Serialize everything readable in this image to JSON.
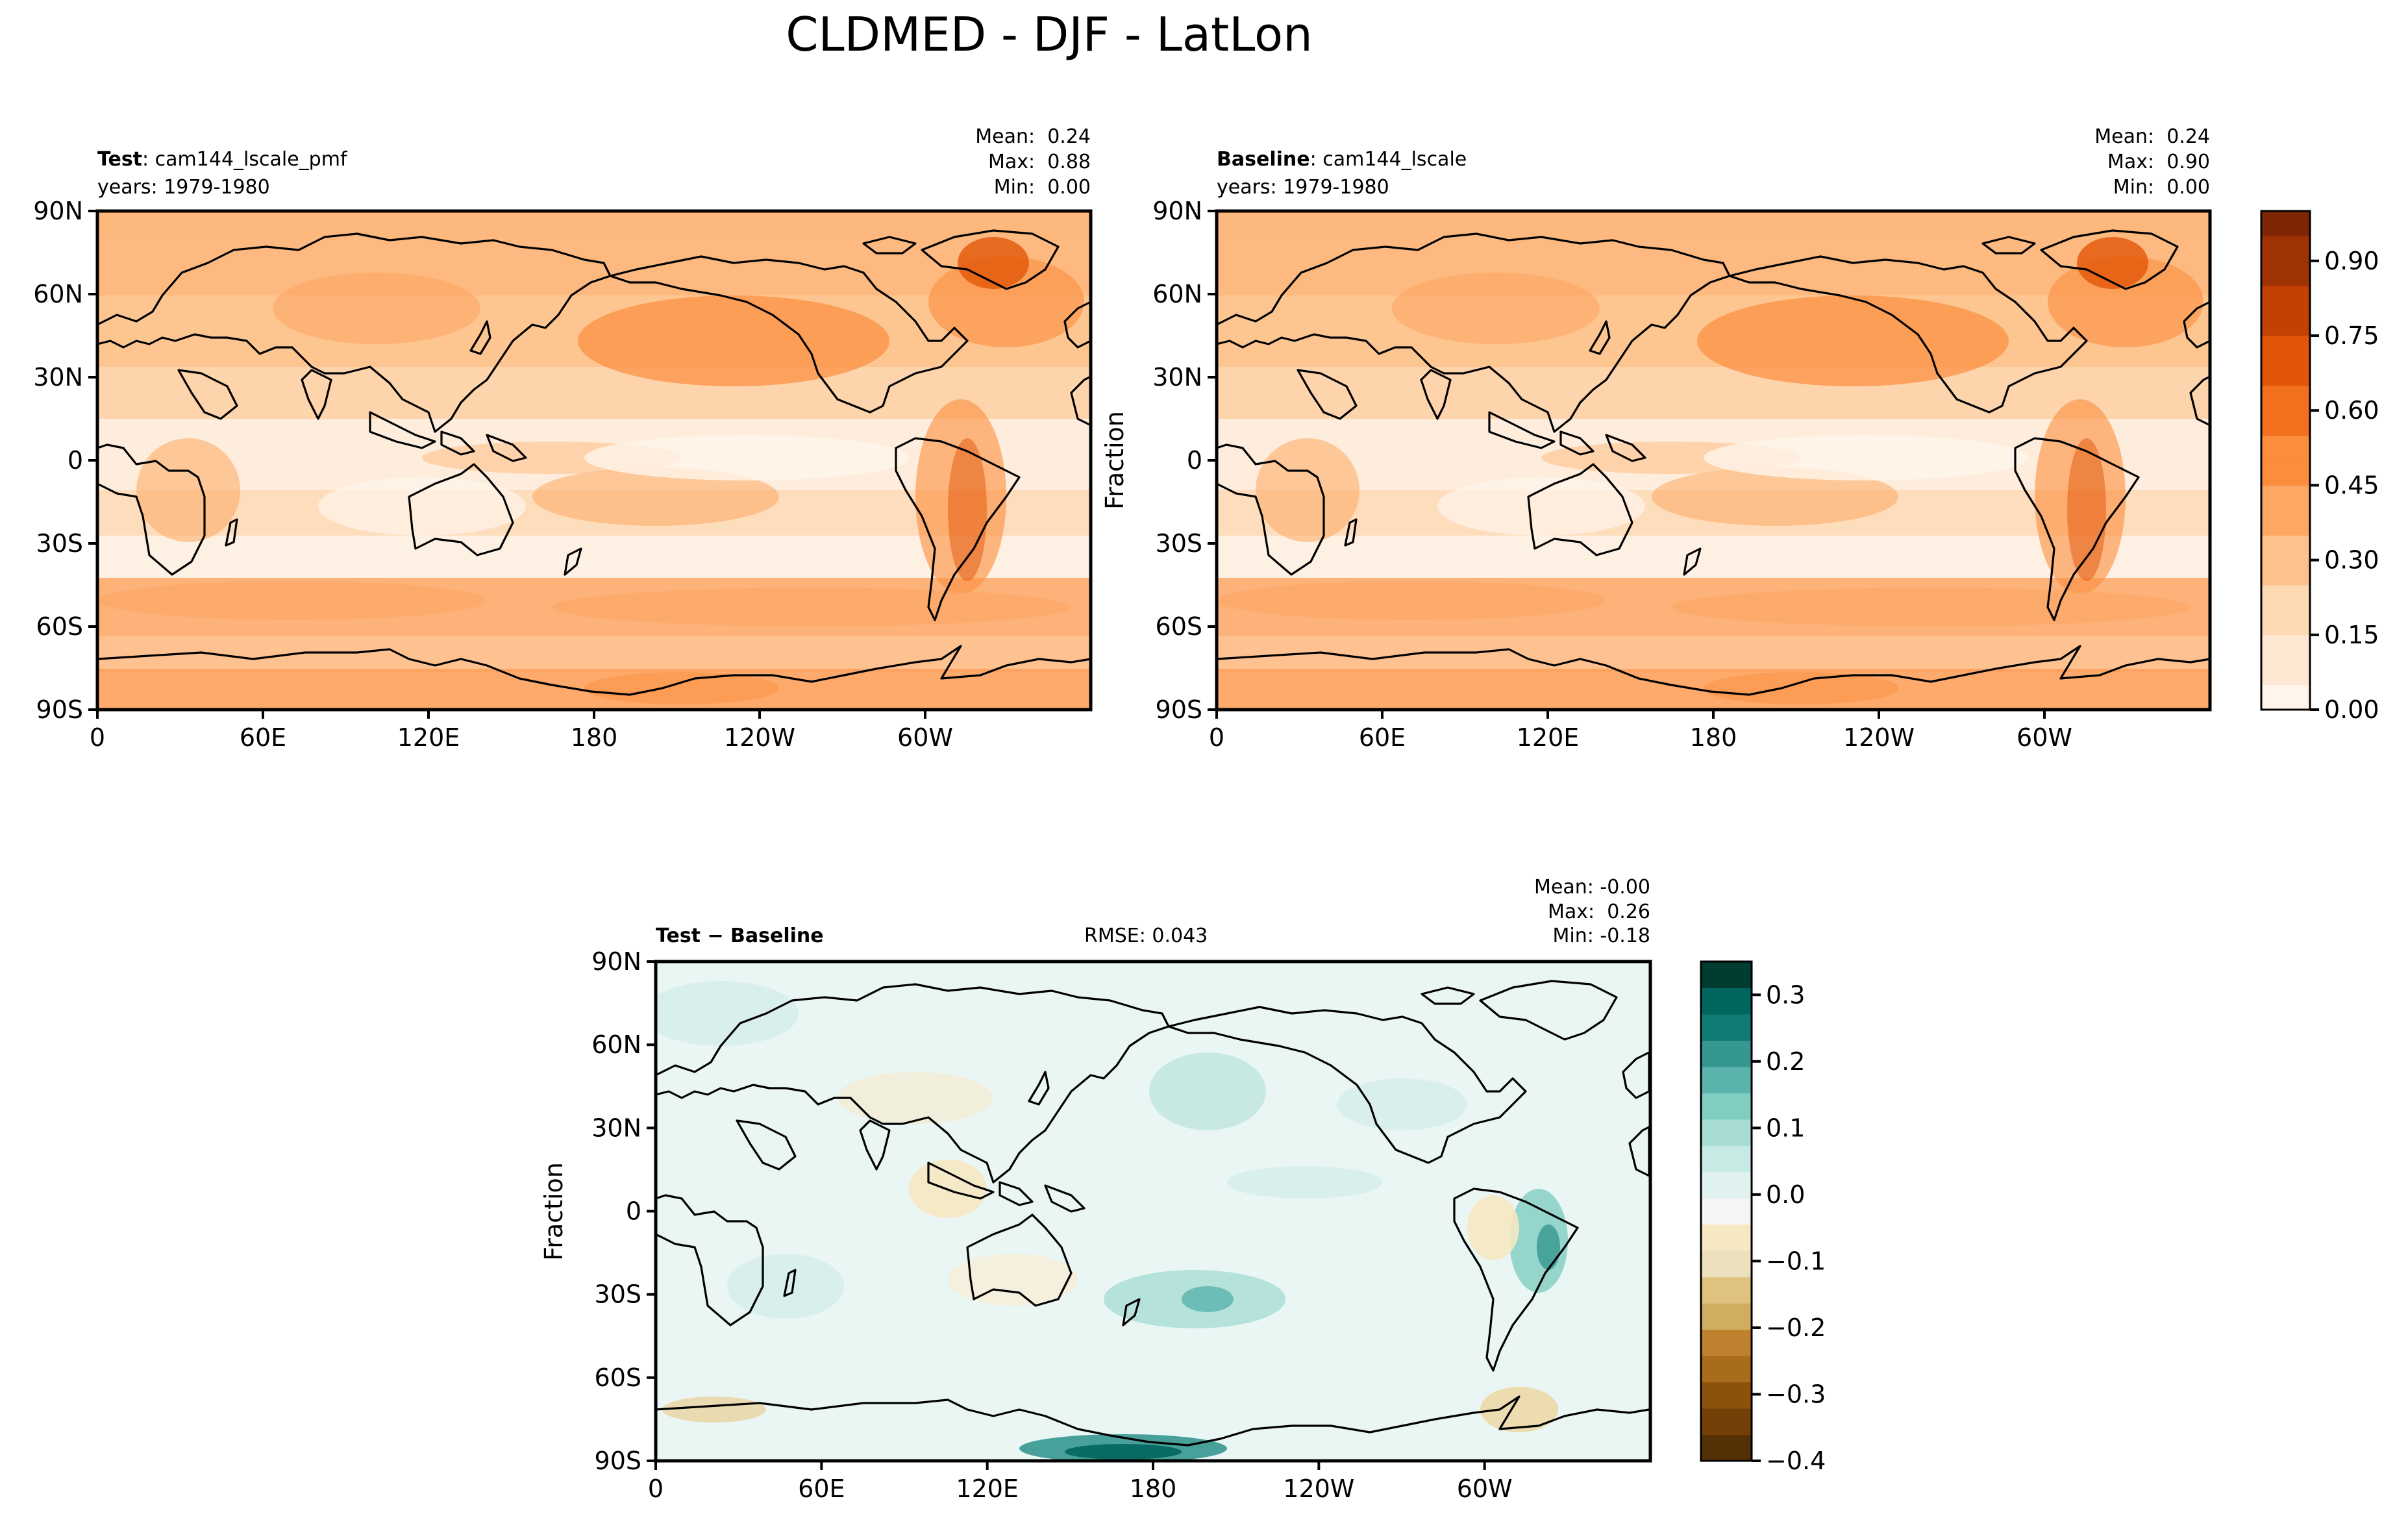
{
  "figure": {
    "title": "CLDMED - DJF - LatLon"
  },
  "chart_data": [
    {
      "type": "heatmap",
      "panel": "test",
      "label_bold": "Test",
      "label_rest": ": cam144_lscale_pmf",
      "subtitle": "years: 1979-1980",
      "stats": [
        "Mean:  0.24",
        "Max:  0.88",
        "Min:  0.00"
      ],
      "ylabel": "",
      "xticks": [
        "0",
        "60E",
        "120E",
        "180",
        "120W",
        "60W"
      ],
      "yticks": [
        "90N",
        "60N",
        "30N",
        "0",
        "30S",
        "60S",
        "90S"
      ],
      "xlim": [
        0,
        360
      ],
      "ylim": [
        -90,
        90
      ]
    },
    {
      "type": "heatmap",
      "panel": "baseline",
      "label_bold": "Baseline",
      "label_rest": ": cam144_lscale",
      "subtitle": "years: 1979-1980",
      "stats": [
        "Mean:  0.24",
        "Max:  0.90",
        "Min:  0.00"
      ],
      "ylabel": "Fraction",
      "xticks": [
        "0",
        "60E",
        "120E",
        "180",
        "120W",
        "60W"
      ],
      "yticks": [
        "90N",
        "60N",
        "30N",
        "0",
        "30S",
        "60S",
        "90S"
      ],
      "xlim": [
        0,
        360
      ],
      "ylim": [
        -90,
        90
      ],
      "colorbar": {
        "range": [
          0.0,
          1.0
        ],
        "ticks": [
          "0.00",
          "0.15",
          "0.30",
          "0.45",
          "0.60",
          "0.75",
          "0.90"
        ],
        "colors_low_to_high": [
          "#fff5eb",
          "#fee8d3",
          "#fdd9b4",
          "#fdc28c",
          "#fda762",
          "#fb8d3d",
          "#f2701d",
          "#e25609",
          "#c44103",
          "#9f3303",
          "#7f2704"
        ]
      }
    },
    {
      "type": "heatmap",
      "panel": "difference",
      "label_bold": "Test − Baseline",
      "rmse": "RMSE: 0.043",
      "stats": [
        "Mean: -0.00",
        "Max:  0.26",
        "Min: -0.18"
      ],
      "ylabel": "Fraction",
      "xticks": [
        "0",
        "60E",
        "120E",
        "180",
        "120W",
        "60W"
      ],
      "yticks": [
        "90N",
        "60N",
        "30N",
        "0",
        "30S",
        "60S",
        "90S"
      ],
      "xlim": [
        0,
        360
      ],
      "ylim": [
        -90,
        90
      ],
      "colorbar": {
        "range": [
          -0.4,
          0.35
        ],
        "ticks": [
          "0.3",
          "0.2",
          "0.1",
          "0.0",
          "−0.1",
          "−0.2",
          "−0.3",
          "−0.4"
        ],
        "colors_low_to_high": [
          "#543005",
          "#734007",
          "#8c510a",
          "#a96c1c",
          "#bf812d",
          "#d1ad62",
          "#dfc27d",
          "#ece0bf",
          "#f6e8c3",
          "#f5f5f5",
          "#e0f2ef",
          "#c7eae5",
          "#a8ddd4",
          "#80cdc1",
          "#5ab4ac",
          "#35978f",
          "#0f7b73",
          "#01665e",
          "#003c30"
        ]
      }
    }
  ]
}
